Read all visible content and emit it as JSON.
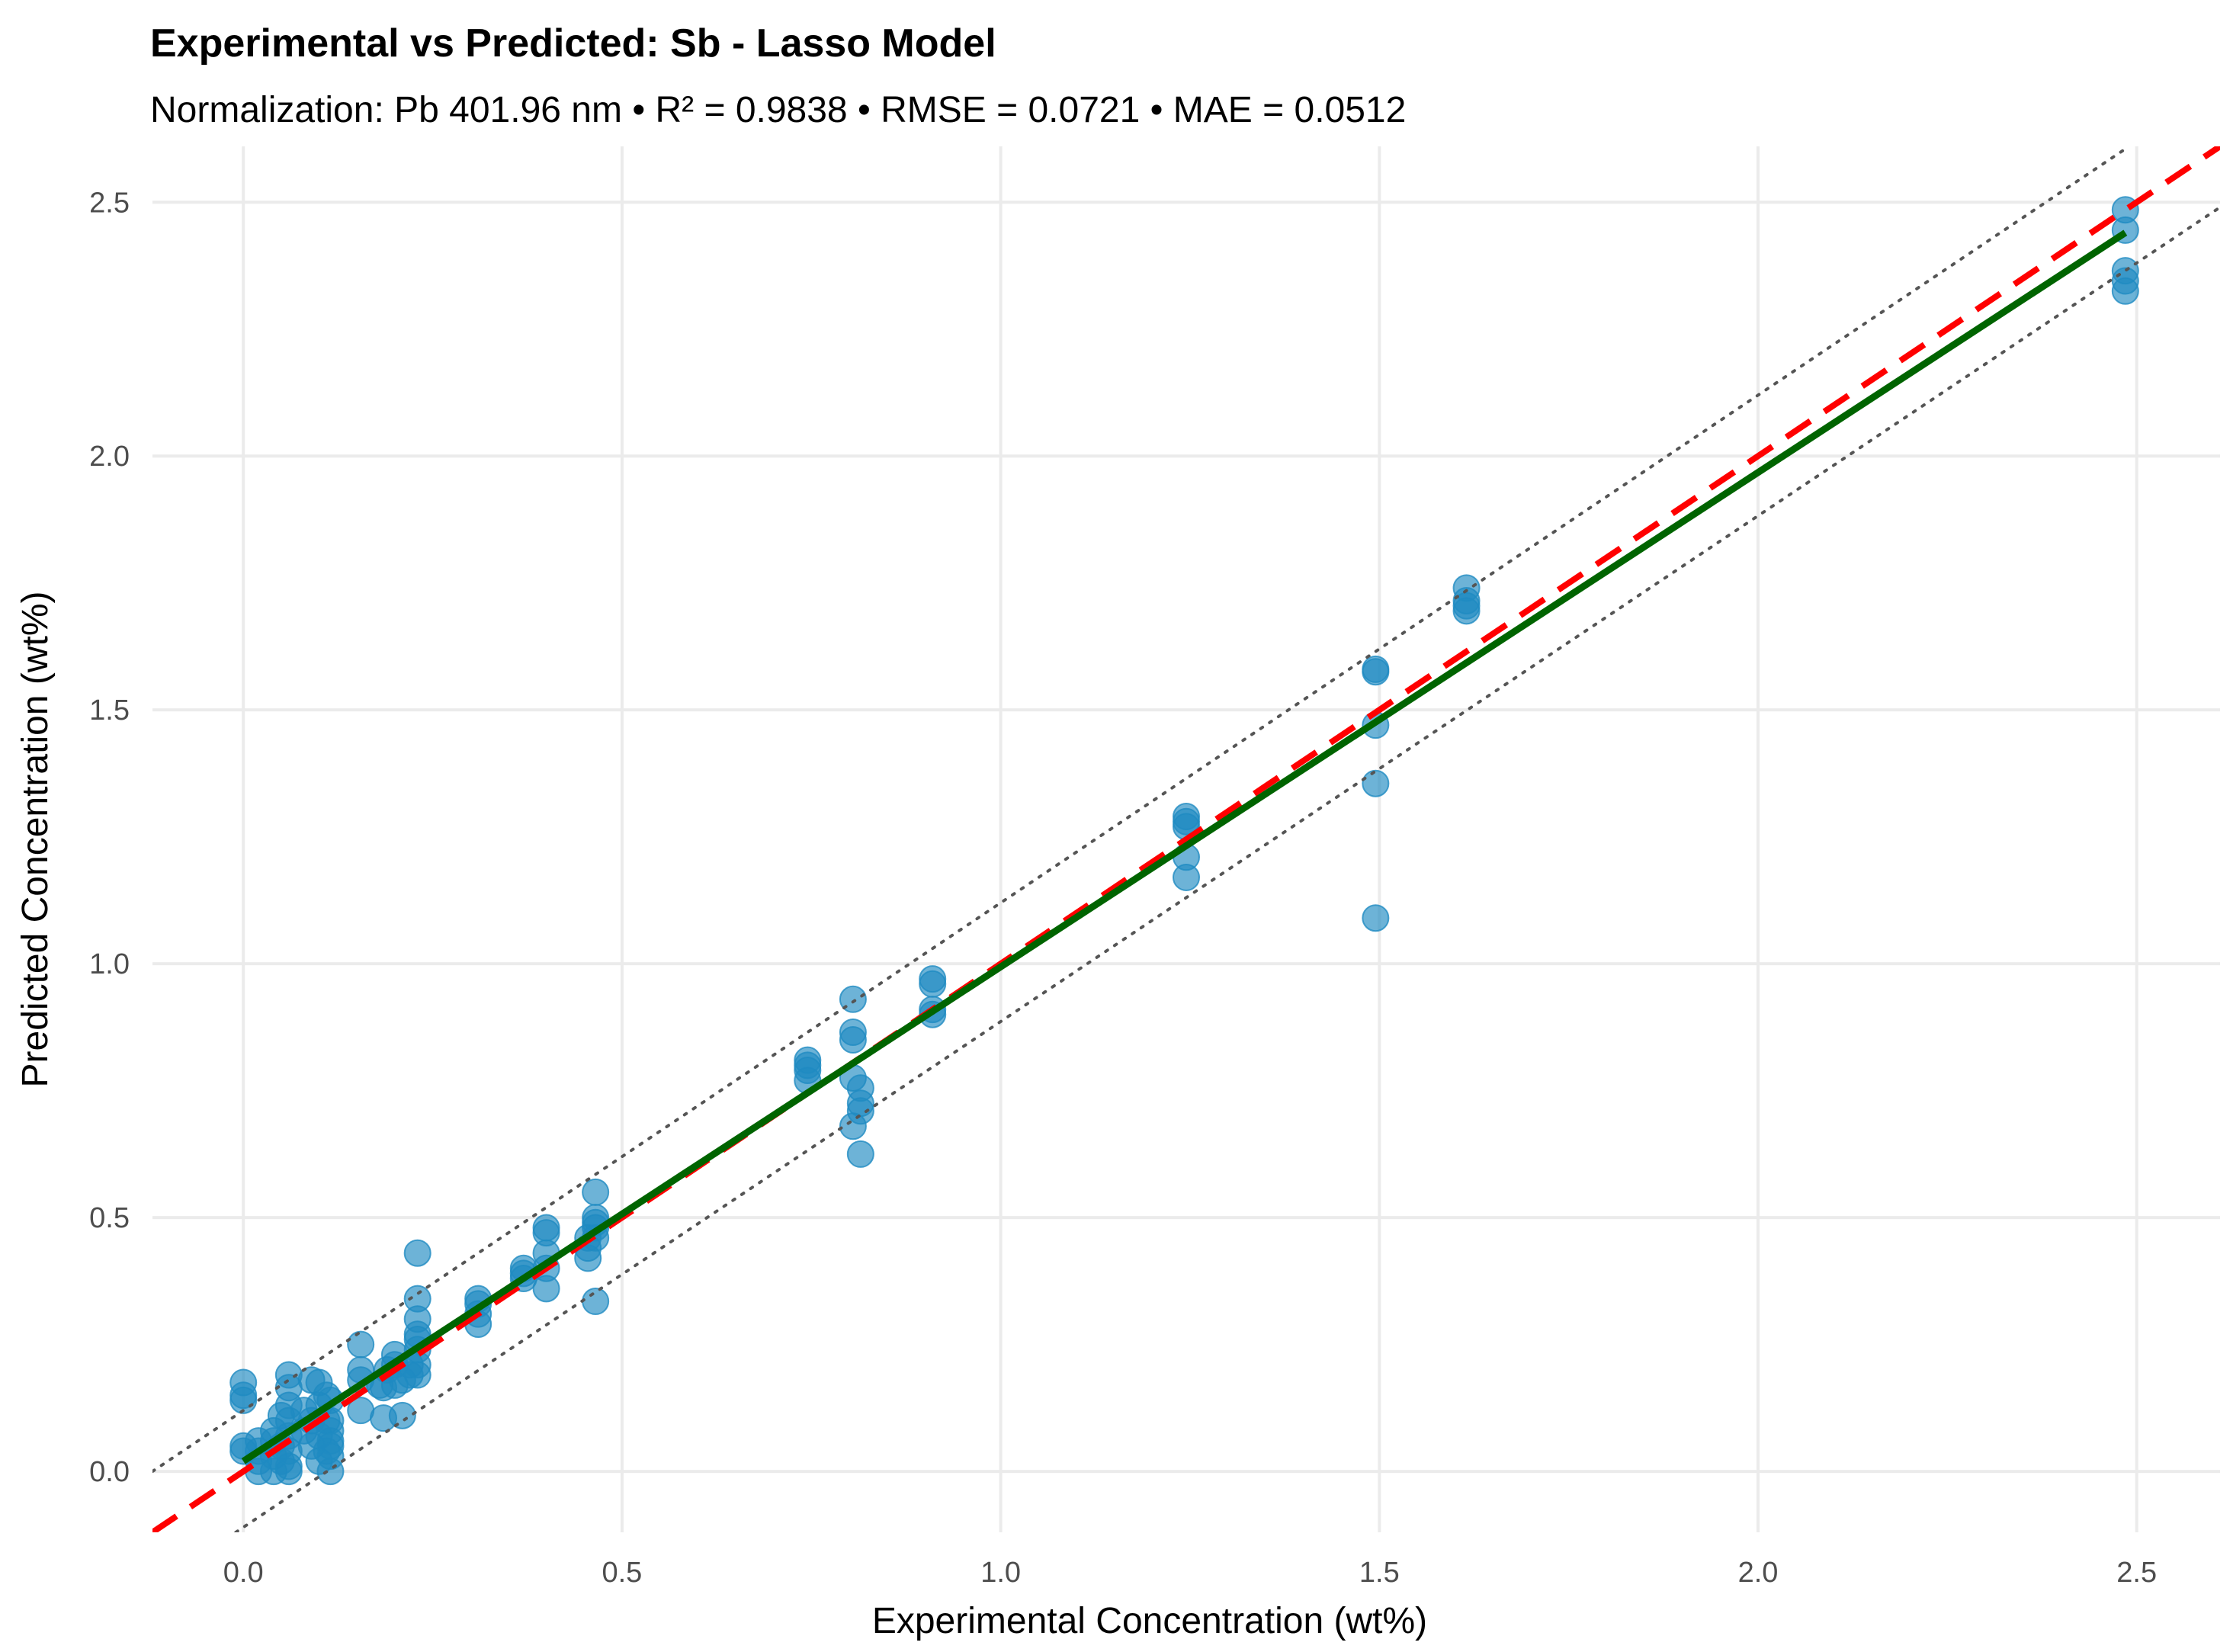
{
  "chart_data": {
    "type": "scatter",
    "title": "Experimental vs Predicted: Sb - Lasso Model",
    "subtitle": "Normalization: Pb 401.96 nm • R² = 0.9838 • RMSE = 0.0721 • MAE = 0.0512",
    "xlabel": "Experimental Concentration (wt%)",
    "ylabel": "Predicted Concentration (wt%)",
    "xlim": [
      -0.12,
      2.61
    ],
    "ylim": [
      -0.12,
      2.61
    ],
    "x_ticks": [
      0.0,
      0.5,
      1.0,
      1.5,
      2.0,
      2.5
    ],
    "x_tick_labels": [
      "0.0",
      "0.5",
      "1.0",
      "1.5",
      "2.0",
      "2.5"
    ],
    "y_ticks": [
      0.0,
      0.5,
      1.0,
      1.5,
      2.0,
      2.5
    ],
    "y_tick_labels": [
      "0.0",
      "0.5",
      "1.0",
      "1.5",
      "2.0",
      "2.5"
    ],
    "grid": true,
    "colors": {
      "points": "#1f8bc2",
      "identity_line": "#ff0000",
      "fit_line": "#006400",
      "band_lines": "#555555",
      "grid": "#ebebeb"
    },
    "reference_lines": [
      {
        "name": "Ideal (y = x)",
        "style": "dashed",
        "x": [
          -0.12,
          2.61
        ],
        "y": [
          -0.12,
          2.61
        ]
      },
      {
        "name": "Upper band (y = x + 0.12)",
        "style": "dotted",
        "x": [
          -0.12,
          2.49
        ],
        "y": [
          0.0,
          2.61
        ]
      },
      {
        "name": "Lower band (y = x - 0.12)",
        "style": "dotted",
        "x": [
          -0.01,
          2.61
        ],
        "y": [
          -0.12,
          2.49
        ]
      }
    ],
    "fit_line": {
      "name": "Linear fit",
      "x": [
        0.0,
        2.485
      ],
      "y": [
        0.02,
        2.44
      ]
    },
    "points": [
      {
        "x": 0.0,
        "y": 0.04
      },
      {
        "x": 0.0,
        "y": 0.05
      },
      {
        "x": 0.0,
        "y": 0.14
      },
      {
        "x": 0.0,
        "y": 0.15
      },
      {
        "x": 0.0,
        "y": 0.175
      },
      {
        "x": 0.02,
        "y": 0.0
      },
      {
        "x": 0.02,
        "y": 0.02
      },
      {
        "x": 0.02,
        "y": 0.04
      },
      {
        "x": 0.02,
        "y": 0.06
      },
      {
        "x": 0.04,
        "y": 0.0
      },
      {
        "x": 0.04,
        "y": 0.03
      },
      {
        "x": 0.04,
        "y": 0.06
      },
      {
        "x": 0.04,
        "y": 0.08
      },
      {
        "x": 0.05,
        "y": 0.02
      },
      {
        "x": 0.05,
        "y": 0.05
      },
      {
        "x": 0.05,
        "y": 0.11
      },
      {
        "x": 0.06,
        "y": 0.0
      },
      {
        "x": 0.06,
        "y": 0.01
      },
      {
        "x": 0.06,
        "y": 0.04
      },
      {
        "x": 0.06,
        "y": 0.07
      },
      {
        "x": 0.06,
        "y": 0.1
      },
      {
        "x": 0.06,
        "y": 0.13
      },
      {
        "x": 0.06,
        "y": 0.165
      },
      {
        "x": 0.06,
        "y": 0.19
      },
      {
        "x": 0.08,
        "y": 0.08
      },
      {
        "x": 0.08,
        "y": 0.12
      },
      {
        "x": 0.09,
        "y": 0.05
      },
      {
        "x": 0.09,
        "y": 0.1
      },
      {
        "x": 0.09,
        "y": 0.18
      },
      {
        "x": 0.1,
        "y": 0.02
      },
      {
        "x": 0.1,
        "y": 0.07
      },
      {
        "x": 0.1,
        "y": 0.13
      },
      {
        "x": 0.1,
        "y": 0.175
      },
      {
        "x": 0.11,
        "y": 0.04
      },
      {
        "x": 0.11,
        "y": 0.1
      },
      {
        "x": 0.11,
        "y": 0.15
      },
      {
        "x": 0.115,
        "y": 0.0
      },
      {
        "x": 0.115,
        "y": 0.03
      },
      {
        "x": 0.115,
        "y": 0.05
      },
      {
        "x": 0.115,
        "y": 0.06
      },
      {
        "x": 0.115,
        "y": 0.08
      },
      {
        "x": 0.115,
        "y": 0.1
      },
      {
        "x": 0.115,
        "y": 0.14
      },
      {
        "x": 0.155,
        "y": 0.12
      },
      {
        "x": 0.155,
        "y": 0.18
      },
      {
        "x": 0.155,
        "y": 0.2
      },
      {
        "x": 0.155,
        "y": 0.25
      },
      {
        "x": 0.18,
        "y": 0.17
      },
      {
        "x": 0.185,
        "y": 0.105
      },
      {
        "x": 0.185,
        "y": 0.165
      },
      {
        "x": 0.19,
        "y": 0.2
      },
      {
        "x": 0.2,
        "y": 0.17
      },
      {
        "x": 0.2,
        "y": 0.21
      },
      {
        "x": 0.2,
        "y": 0.23
      },
      {
        "x": 0.21,
        "y": 0.11
      },
      {
        "x": 0.21,
        "y": 0.18
      },
      {
        "x": 0.22,
        "y": 0.19
      },
      {
        "x": 0.22,
        "y": 0.21
      },
      {
        "x": 0.23,
        "y": 0.19
      },
      {
        "x": 0.23,
        "y": 0.21
      },
      {
        "x": 0.23,
        "y": 0.24
      },
      {
        "x": 0.23,
        "y": 0.26
      },
      {
        "x": 0.23,
        "y": 0.27
      },
      {
        "x": 0.23,
        "y": 0.3
      },
      {
        "x": 0.23,
        "y": 0.34
      },
      {
        "x": 0.23,
        "y": 0.43
      },
      {
        "x": 0.31,
        "y": 0.29
      },
      {
        "x": 0.31,
        "y": 0.31
      },
      {
        "x": 0.31,
        "y": 0.33
      },
      {
        "x": 0.31,
        "y": 0.34
      },
      {
        "x": 0.37,
        "y": 0.38
      },
      {
        "x": 0.37,
        "y": 0.39
      },
      {
        "x": 0.37,
        "y": 0.4
      },
      {
        "x": 0.4,
        "y": 0.36
      },
      {
        "x": 0.4,
        "y": 0.4
      },
      {
        "x": 0.4,
        "y": 0.43
      },
      {
        "x": 0.4,
        "y": 0.47
      },
      {
        "x": 0.4,
        "y": 0.48
      },
      {
        "x": 0.455,
        "y": 0.42
      },
      {
        "x": 0.455,
        "y": 0.44
      },
      {
        "x": 0.455,
        "y": 0.46
      },
      {
        "x": 0.465,
        "y": 0.335
      },
      {
        "x": 0.465,
        "y": 0.46
      },
      {
        "x": 0.465,
        "y": 0.48
      },
      {
        "x": 0.465,
        "y": 0.49
      },
      {
        "x": 0.465,
        "y": 0.5
      },
      {
        "x": 0.465,
        "y": 0.55
      },
      {
        "x": 0.745,
        "y": 0.77
      },
      {
        "x": 0.745,
        "y": 0.79
      },
      {
        "x": 0.745,
        "y": 0.8
      },
      {
        "x": 0.745,
        "y": 0.81
      },
      {
        "x": 0.805,
        "y": 0.68
      },
      {
        "x": 0.805,
        "y": 0.775
      },
      {
        "x": 0.805,
        "y": 0.85
      },
      {
        "x": 0.805,
        "y": 0.865
      },
      {
        "x": 0.805,
        "y": 0.93
      },
      {
        "x": 0.815,
        "y": 0.625
      },
      {
        "x": 0.815,
        "y": 0.71
      },
      {
        "x": 0.815,
        "y": 0.725
      },
      {
        "x": 0.815,
        "y": 0.755
      },
      {
        "x": 0.91,
        "y": 0.9
      },
      {
        "x": 0.91,
        "y": 0.91
      },
      {
        "x": 0.91,
        "y": 0.96
      },
      {
        "x": 0.91,
        "y": 0.97
      },
      {
        "x": 1.245,
        "y": 1.17
      },
      {
        "x": 1.245,
        "y": 1.21
      },
      {
        "x": 1.245,
        "y": 1.27
      },
      {
        "x": 1.245,
        "y": 1.28
      },
      {
        "x": 1.245,
        "y": 1.29
      },
      {
        "x": 1.495,
        "y": 1.09
      },
      {
        "x": 1.495,
        "y": 1.355
      },
      {
        "x": 1.495,
        "y": 1.47
      },
      {
        "x": 1.495,
        "y": 1.575
      },
      {
        "x": 1.495,
        "y": 1.58
      },
      {
        "x": 1.615,
        "y": 1.695
      },
      {
        "x": 1.615,
        "y": 1.705
      },
      {
        "x": 1.615,
        "y": 1.715
      },
      {
        "x": 1.615,
        "y": 1.74
      },
      {
        "x": 2.485,
        "y": 2.325
      },
      {
        "x": 2.485,
        "y": 2.345
      },
      {
        "x": 2.485,
        "y": 2.365
      },
      {
        "x": 2.485,
        "y": 2.445
      },
      {
        "x": 2.485,
        "y": 2.485
      }
    ]
  }
}
